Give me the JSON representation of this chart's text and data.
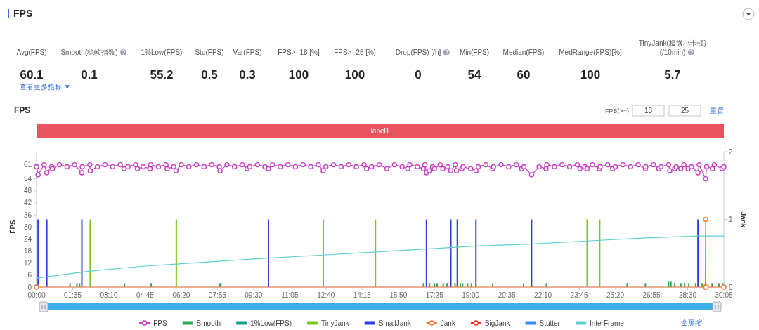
{
  "chart_data": [
    {
      "type": "other",
      "title": "FPS",
      "categories": [
        "Avg(FPS)",
        "Smooth(稳帧指数)",
        "1%Low(FPS)",
        "Std(FPS)",
        "Var(FPS)",
        "FPS>=18 [%]",
        "FPS>=25 [%]",
        "Drop(FPS) [/h]",
        "Min(FPS)",
        "Median(FPS)",
        "MedRange(FPS)[%]",
        "TinyJank(极微小卡顿)\n(/10min)"
      ],
      "values": [
        60.1,
        0.1,
        55.2,
        0.5,
        0.3,
        100,
        100,
        0,
        54,
        60,
        100,
        5.7
      ],
      "data_labels": true,
      "annotations": [
        "查看更多指标 ▼"
      ]
    },
    {
      "type": "line",
      "title": "FPS",
      "ylabel": "FPS",
      "y2label": "Jank",
      "legend": "bottom",
      "annotations": [
        "FPS(>=)",
        "18",
        "25",
        "重置",
        "label1",
        "全屏缩"
      ],
      "xlim": [
        0,
        1805
      ],
      "xticks": [
        {
          "value": 0,
          "label": "00:00"
        },
        {
          "value": 95,
          "label": "01:35"
        },
        {
          "value": 190,
          "label": "03:10"
        },
        {
          "value": 285,
          "label": "04:45"
        },
        {
          "value": 380,
          "label": "06:20"
        },
        {
          "value": 475,
          "label": "07:55"
        },
        {
          "value": 570,
          "label": "09:30"
        },
        {
          "value": 665,
          "label": "11:05"
        },
        {
          "value": 760,
          "label": "12:40"
        },
        {
          "value": 855,
          "label": "14:15"
        },
        {
          "value": 950,
          "label": "15:50"
        },
        {
          "value": 1045,
          "label": "17:25"
        },
        {
          "value": 1140,
          "label": "19:00"
        },
        {
          "value": 1235,
          "label": "20:35"
        },
        {
          "value": 1330,
          "label": "22:10"
        },
        {
          "value": 1425,
          "label": "23:45"
        },
        {
          "value": 1520,
          "label": "25:20"
        },
        {
          "value": 1615,
          "label": "26:55"
        },
        {
          "value": 1710,
          "label": "28:30"
        },
        {
          "value": 1805,
          "label": "30:05"
        }
      ],
      "ylim": [
        0,
        67.5
      ],
      "yticks": [
        0,
        6,
        12,
        18,
        24,
        30,
        36,
        42,
        48,
        54,
        61
      ],
      "y2lim": [
        0,
        2
      ],
      "y2ticks": [
        0,
        1,
        2
      ],
      "series": [
        {
          "name": "FPS",
          "type": "line",
          "color": "#c93dc9",
          "marker": "circle",
          "x": [
            0,
            4,
            20,
            27,
            40,
            42,
            60,
            80,
            100,
            119,
            120,
            140,
            141,
            160,
            180,
            200,
            220,
            230,
            240,
            260,
            265,
            280,
            298,
            300,
            320,
            340,
            343,
            360,
            366,
            380,
            400,
            420,
            440,
            460,
            480,
            482,
            500,
            520,
            540,
            553,
            560,
            580,
            600,
            609,
            620,
            640,
            660,
            680,
            700,
            720,
            740,
            753,
            760,
            780,
            800,
            820,
            840,
            860,
            867,
            880,
            900,
            920,
            940,
            960,
            975,
            980,
            1000,
            1016,
            1020,
            1024,
            1031,
            1040,
            1045,
            1060,
            1067,
            1080,
            1088,
            1100,
            1103,
            1117,
            1120,
            1140,
            1154,
            1160,
            1180,
            1198,
            1200,
            1220,
            1240,
            1260,
            1274,
            1280,
            1300,
            1320,
            1338,
            1340,
            1360,
            1380,
            1400,
            1420,
            1427,
            1440,
            1446,
            1460,
            1478,
            1480,
            1500,
            1513,
            1520,
            1540,
            1560,
            1580,
            1599,
            1600,
            1620,
            1634,
            1640,
            1660,
            1663,
            1676,
            1680,
            1692,
            1700,
            1711,
            1720,
            1737,
            1740,
            1757,
            1760,
            1775,
            1780,
            1800,
            1805
          ],
          "values": [
            60,
            56,
            61,
            57,
            60,
            59,
            61,
            60,
            61,
            57,
            60,
            61,
            58,
            60,
            61,
            60,
            61,
            59,
            60,
            61,
            59,
            60,
            59,
            61,
            60,
            61,
            59,
            60,
            58,
            61,
            60,
            61,
            60,
            61,
            60,
            58,
            61,
            60,
            61,
            59,
            60,
            61,
            60,
            59,
            61,
            60,
            61,
            60,
            61,
            60,
            61,
            58,
            60,
            61,
            60,
            61,
            60,
            61,
            59,
            60,
            61,
            59,
            61,
            60,
            59,
            61,
            60,
            59,
            61,
            57,
            58,
            60,
            59,
            61,
            59,
            60,
            58,
            61,
            58,
            59,
            60,
            59,
            58,
            60,
            61,
            59,
            60,
            61,
            60,
            61,
            59,
            60,
            56,
            60,
            59,
            61,
            60,
            61,
            60,
            61,
            59,
            60,
            59,
            61,
            59,
            60,
            61,
            59,
            60,
            61,
            60,
            61,
            59,
            60,
            61,
            59,
            60,
            61,
            58,
            59,
            60,
            59,
            61,
            59,
            60,
            57,
            61,
            54,
            60,
            59,
            61,
            59,
            60
          ]
        },
        {
          "name": "Smooth",
          "type": "bar",
          "color": "#2eaa5c",
          "x": [
            88,
            106,
            113,
            231,
            301,
            481,
            484,
            1016,
            1032,
            1045,
            1052,
            1068,
            1078,
            1099,
            1113,
            1119,
            1132,
            1142,
            1198,
            1279,
            1339,
            1551,
            1599,
            1660,
            1666,
            1676,
            1692,
            1702,
            1713,
            1731,
            1748,
            1774,
            1792,
            1802
          ],
          "values": [
            2,
            2,
            2,
            2,
            2,
            2,
            2,
            2,
            2,
            2,
            2,
            2,
            2,
            2,
            2,
            2,
            2,
            2,
            2,
            2,
            2,
            2,
            2,
            3,
            3,
            2,
            2,
            2,
            2,
            2,
            2,
            2,
            2,
            2
          ]
        },
        {
          "name": "1%Low(FPS)",
          "type": "line",
          "color": "#14a090",
          "values": [
            null
          ]
        },
        {
          "name": "TinyJank",
          "type": "bar",
          "axis": "y2",
          "color": "#7cc520",
          "x": [
            141,
            367,
            753,
            890,
            1446,
            1479
          ],
          "values": [
            1,
            1,
            1,
            1,
            1,
            1
          ]
        },
        {
          "name": "SmallJank",
          "type": "bar",
          "axis": "y2",
          "color": "#2d3fe6",
          "x": [
            4,
            27,
            119,
            609,
            1024,
            1088,
            1105,
            1154,
            1300,
            1737
          ],
          "values": [
            1,
            1,
            1,
            1,
            1,
            1,
            1,
            1,
            1,
            1
          ]
        },
        {
          "name": "Jank",
          "type": "line",
          "axis": "y2",
          "color": "#f47a3c",
          "marker": "circle",
          "x": [
            0,
            1756,
            1757,
            1758,
            1805
          ],
          "values": [
            0,
            0,
            1,
            0,
            0
          ]
        },
        {
          "name": "BigJank",
          "type": "line",
          "axis": "y2",
          "color": "#e5302c",
          "marker": "circle",
          "values": [
            null
          ]
        },
        {
          "name": "Stutter",
          "type": "line",
          "axis": "y2",
          "color": "#3b8cf0",
          "values": [
            null
          ]
        },
        {
          "name": "InterFrame",
          "type": "line",
          "color": "#5ecfd0",
          "x": [
            0,
            60,
            119,
            141,
            284,
            367,
            572,
            609,
            753,
            890,
            1024,
            1154,
            1300,
            1446,
            1599,
            1737,
            1805
          ],
          "values": [
            4.5,
            6,
            7.5,
            8,
            10.5,
            11.5,
            14,
            14.5,
            16,
            17.5,
            19,
            20.5,
            21.5,
            23,
            24.5,
            25.5,
            25.5
          ]
        }
      ]
    }
  ]
}
